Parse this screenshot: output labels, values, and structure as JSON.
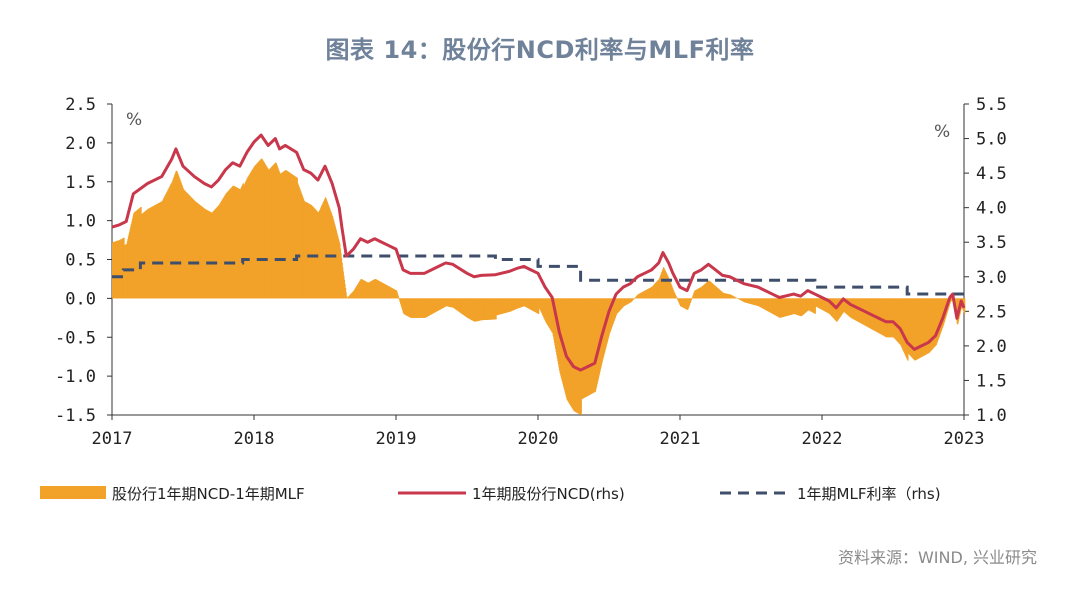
{
  "title": "图表 14：股份行NCD利率与MLF利率",
  "source": "资料来源：WIND, 兴业研究",
  "colors": {
    "bar": "#f2a229",
    "ncd": "#c8374b",
    "mlf": "#3f4f6b",
    "title": "#6f829a"
  },
  "chart_data": {
    "type": "bar+line",
    "left_axis": {
      "unit": "%",
      "ylim": [
        -1.5,
        2.5
      ],
      "ticks": [
        "2.5",
        "2.0",
        "1.5",
        "1.0",
        "0.5",
        "0.0",
        "-0.5",
        "-1.0",
        "-1.5"
      ]
    },
    "right_axis": {
      "unit": "%",
      "ylim": [
        1.0,
        5.5
      ],
      "ticks": [
        "5.5",
        "5.0",
        "4.5",
        "4.0",
        "3.5",
        "3.0",
        "2.5",
        "2.0",
        "1.5",
        "1.0"
      ]
    },
    "x_ticks": [
      "2017",
      "2018",
      "2019",
      "2020",
      "2021",
      "2022",
      "2023"
    ],
    "x_range": [
      2017.0,
      2023.0
    ],
    "legend": [
      "股份行1年期NCD-1年期MLF",
      "1年期股份行NCD(rhs)",
      "1年期MLF利率（rhs)"
    ],
    "series": [
      {
        "name": "1年期股份行NCD(rhs)",
        "type": "line",
        "axis": "right",
        "points": [
          [
            2017.0,
            3.72
          ],
          [
            2017.05,
            3.75
          ],
          [
            2017.1,
            3.8
          ],
          [
            2017.15,
            4.2
          ],
          [
            2017.25,
            4.35
          ],
          [
            2017.35,
            4.45
          ],
          [
            2017.42,
            4.7
          ],
          [
            2017.45,
            4.85
          ],
          [
            2017.5,
            4.6
          ],
          [
            2017.58,
            4.45
          ],
          [
            2017.65,
            4.35
          ],
          [
            2017.7,
            4.3
          ],
          [
            2017.75,
            4.4
          ],
          [
            2017.8,
            4.55
          ],
          [
            2017.85,
            4.65
          ],
          [
            2017.9,
            4.6
          ],
          [
            2017.95,
            4.8
          ],
          [
            2018.0,
            4.95
          ],
          [
            2018.05,
            5.05
          ],
          [
            2018.1,
            4.9
          ],
          [
            2018.15,
            5.0
          ],
          [
            2018.18,
            4.85
          ],
          [
            2018.22,
            4.9
          ],
          [
            2018.3,
            4.8
          ],
          [
            2018.35,
            4.55
          ],
          [
            2018.4,
            4.5
          ],
          [
            2018.45,
            4.4
          ],
          [
            2018.5,
            4.6
          ],
          [
            2018.55,
            4.35
          ],
          [
            2018.6,
            4.0
          ],
          [
            2018.62,
            3.7
          ],
          [
            2018.65,
            3.3
          ],
          [
            2018.7,
            3.4
          ],
          [
            2018.75,
            3.55
          ],
          [
            2018.8,
            3.5
          ],
          [
            2018.85,
            3.55
          ],
          [
            2018.9,
            3.5
          ],
          [
            2018.95,
            3.45
          ],
          [
            2019.0,
            3.4
          ],
          [
            2019.05,
            3.1
          ],
          [
            2019.1,
            3.05
          ],
          [
            2019.15,
            3.05
          ],
          [
            2019.2,
            3.05
          ],
          [
            2019.3,
            3.15
          ],
          [
            2019.35,
            3.2
          ],
          [
            2019.4,
            3.18
          ],
          [
            2019.5,
            3.05
          ],
          [
            2019.55,
            3.0
          ],
          [
            2019.6,
            3.02
          ],
          [
            2019.7,
            3.03
          ],
          [
            2019.8,
            3.08
          ],
          [
            2019.85,
            3.12
          ],
          [
            2019.9,
            3.15
          ],
          [
            2019.95,
            3.1
          ],
          [
            2020.0,
            3.05
          ],
          [
            2020.05,
            2.85
          ],
          [
            2020.1,
            2.7
          ],
          [
            2020.15,
            2.2
          ],
          [
            2020.2,
            1.85
          ],
          [
            2020.25,
            1.7
          ],
          [
            2020.3,
            1.65
          ],
          [
            2020.35,
            1.7
          ],
          [
            2020.4,
            1.75
          ],
          [
            2020.45,
            2.15
          ],
          [
            2020.5,
            2.5
          ],
          [
            2020.55,
            2.75
          ],
          [
            2020.6,
            2.85
          ],
          [
            2020.65,
            2.9
          ],
          [
            2020.7,
            3.0
          ],
          [
            2020.75,
            3.05
          ],
          [
            2020.8,
            3.1
          ],
          [
            2020.85,
            3.2
          ],
          [
            2020.88,
            3.35
          ],
          [
            2020.92,
            3.2
          ],
          [
            2020.95,
            3.05
          ],
          [
            2021.0,
            2.85
          ],
          [
            2021.05,
            2.8
          ],
          [
            2021.1,
            3.05
          ],
          [
            2021.15,
            3.1
          ],
          [
            2021.2,
            3.18
          ],
          [
            2021.25,
            3.1
          ],
          [
            2021.3,
            3.02
          ],
          [
            2021.35,
            3.0
          ],
          [
            2021.45,
            2.9
          ],
          [
            2021.55,
            2.85
          ],
          [
            2021.65,
            2.75
          ],
          [
            2021.7,
            2.7
          ],
          [
            2021.8,
            2.75
          ],
          [
            2021.85,
            2.72
          ],
          [
            2021.9,
            2.8
          ],
          [
            2021.95,
            2.75
          ],
          [
            2022.0,
            2.7
          ],
          [
            2022.05,
            2.65
          ],
          [
            2022.1,
            2.55
          ],
          [
            2022.15,
            2.68
          ],
          [
            2022.2,
            2.6
          ],
          [
            2022.25,
            2.55
          ],
          [
            2022.3,
            2.5
          ],
          [
            2022.35,
            2.45
          ],
          [
            2022.4,
            2.4
          ],
          [
            2022.45,
            2.35
          ],
          [
            2022.5,
            2.35
          ],
          [
            2022.55,
            2.25
          ],
          [
            2022.6,
            2.05
          ],
          [
            2022.65,
            1.95
          ],
          [
            2022.7,
            2.0
          ],
          [
            2022.75,
            2.05
          ],
          [
            2022.8,
            2.15
          ],
          [
            2022.85,
            2.4
          ],
          [
            2022.9,
            2.7
          ],
          [
            2022.92,
            2.75
          ],
          [
            2022.95,
            2.4
          ],
          [
            2022.98,
            2.65
          ],
          [
            2023.0,
            2.55
          ]
        ]
      },
      {
        "name": "1年期MLF利率（rhs)",
        "type": "line",
        "style": "dashed",
        "axis": "right",
        "points": [
          [
            2017.0,
            3.0
          ],
          [
            2017.08,
            3.1
          ],
          [
            2017.2,
            3.2
          ],
          [
            2017.9,
            3.2
          ],
          [
            2017.92,
            3.25
          ],
          [
            2018.25,
            3.25
          ],
          [
            2018.3,
            3.3
          ],
          [
            2019.5,
            3.3
          ],
          [
            2019.7,
            3.25
          ],
          [
            2019.85,
            3.25
          ],
          [
            2020.0,
            3.15
          ],
          [
            2020.15,
            3.15
          ],
          [
            2020.3,
            2.95
          ],
          [
            2021.9,
            2.95
          ],
          [
            2021.95,
            2.85
          ],
          [
            2022.55,
            2.85
          ],
          [
            2022.6,
            2.75
          ],
          [
            2023.0,
            2.75
          ]
        ]
      },
      {
        "name": "股份行1年期NCD-1年期MLF",
        "type": "bar",
        "axis": "left",
        "values_note": "spread = NCD - MLF, derived from the two series above"
      }
    ]
  }
}
